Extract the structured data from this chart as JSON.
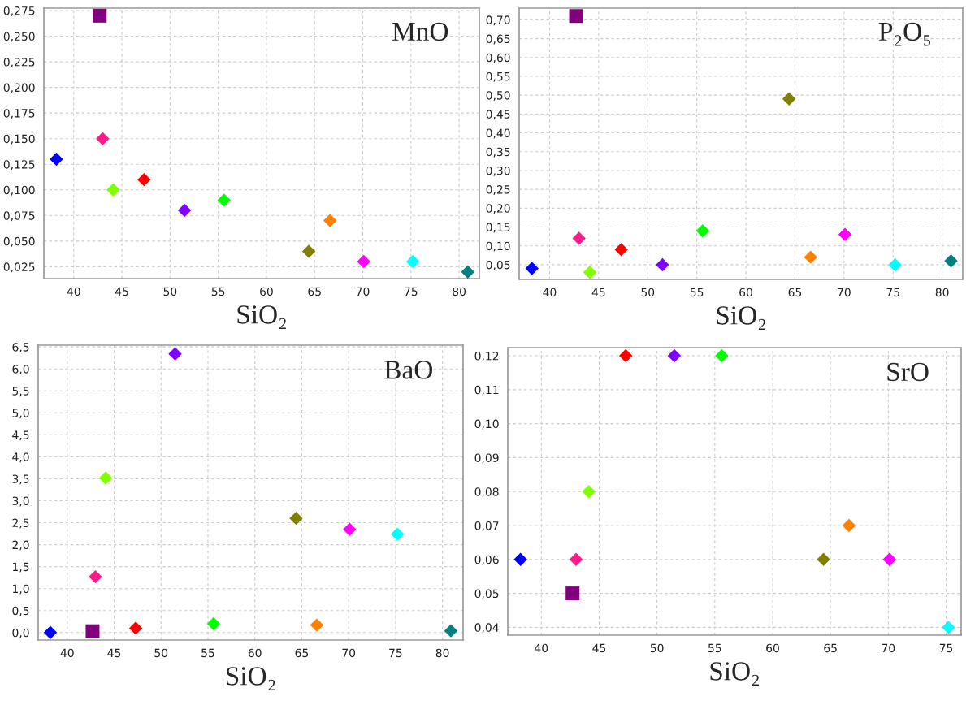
{
  "chart_data": [
    {
      "type": "scatter",
      "title": "MnO",
      "xlabel": "SiO₂",
      "xlim": [
        36.9,
        82.1
      ],
      "ylim": [
        0.0134,
        0.2774
      ],
      "xticks": [
        40,
        45,
        50,
        55,
        60,
        65,
        70,
        75,
        80
      ],
      "yticks": [
        {
          "value": 0.025,
          "label": "0,025"
        },
        {
          "value": 0.05,
          "label": "0,050"
        },
        {
          "value": 0.075,
          "label": "0,075"
        },
        {
          "value": 0.1,
          "label": "0,100"
        },
        {
          "value": 0.125,
          "label": "0,125"
        },
        {
          "value": 0.15,
          "label": "0,150"
        },
        {
          "value": 0.175,
          "label": "0,175"
        },
        {
          "value": 0.2,
          "label": "0,200"
        },
        {
          "value": 0.225,
          "label": "0,225"
        },
        {
          "value": 0.25,
          "label": "0,250"
        },
        {
          "value": 0.275,
          "label": "0,275"
        }
      ],
      "grid": true,
      "legend": false,
      "series": [
        {
          "marker": "diamond",
          "x": [
            38.2,
            43.0,
            44.1,
            47.3,
            51.5,
            55.6,
            64.4,
            66.6,
            70.1,
            75.2,
            80.9
          ],
          "values": [
            0.13,
            0.15,
            0.1,
            0.11,
            0.08,
            0.09,
            0.04,
            0.07,
            0.03,
            0.03,
            0.02
          ],
          "colors": [
            "#0000ff",
            "#ff1a8c",
            "#80ff00",
            "#ff0000",
            "#8000ff",
            "#00ff00",
            "#808000",
            "#ff8000",
            "#ff00ff",
            "#00ffff",
            "#008080"
          ]
        },
        {
          "marker": "square",
          "x": [
            42.7
          ],
          "values": [
            0.27
          ],
          "color": "#800080"
        }
      ]
    },
    {
      "type": "scatter",
      "title": "P₂O₅",
      "xlabel": "SiO₂",
      "xlim": [
        36.9,
        82.1
      ],
      "ylim": [
        0.011,
        0.731
      ],
      "xticks": [
        40,
        45,
        50,
        55,
        60,
        65,
        70,
        75,
        80
      ],
      "yticks": [
        {
          "value": 0.05,
          "label": "0,05"
        },
        {
          "value": 0.1,
          "label": "0,10"
        },
        {
          "value": 0.15,
          "label": "0,15"
        },
        {
          "value": 0.2,
          "label": "0,20"
        },
        {
          "value": 0.25,
          "label": "0,25"
        },
        {
          "value": 0.3,
          "label": "0,30"
        },
        {
          "value": 0.35,
          "label": "0,35"
        },
        {
          "value": 0.4,
          "label": "0,40"
        },
        {
          "value": 0.45,
          "label": "0,45"
        },
        {
          "value": 0.5,
          "label": "0,50"
        },
        {
          "value": 0.55,
          "label": "0,55"
        },
        {
          "value": 0.6,
          "label": "0,60"
        },
        {
          "value": 0.65,
          "label": "0,65"
        },
        {
          "value": 0.7,
          "label": "0,70"
        }
      ],
      "grid": true,
      "legend": false,
      "series": [
        {
          "marker": "diamond",
          "x": [
            38.2,
            43.0,
            44.1,
            47.3,
            51.5,
            55.6,
            64.4,
            66.6,
            70.1,
            75.2,
            80.9
          ],
          "values": [
            0.04,
            0.12,
            0.03,
            0.09,
            0.05,
            0.14,
            0.49,
            0.07,
            0.13,
            0.05,
            0.06
          ],
          "colors": [
            "#0000ff",
            "#ff1a8c",
            "#80ff00",
            "#ff0000",
            "#8000ff",
            "#00ff00",
            "#808000",
            "#ff8000",
            "#ff00ff",
            "#00ffff",
            "#008080"
          ]
        },
        {
          "marker": "square",
          "x": [
            42.7
          ],
          "values": [
            0.71
          ],
          "color": "#800080"
        }
      ]
    },
    {
      "type": "scatter",
      "title": "BaO",
      "xlabel": "SiO₂",
      "xlim": [
        36.9,
        82.2
      ],
      "ylim": [
        -0.17,
        6.54
      ],
      "xticks": [
        40,
        45,
        50,
        55,
        60,
        65,
        70,
        75,
        80
      ],
      "yticks": [
        {
          "value": 0,
          "label": "0,0"
        },
        {
          "value": 0.5,
          "label": "0,5"
        },
        {
          "value": 1,
          "label": "1,0"
        },
        {
          "value": 1.5,
          "label": "1,5"
        },
        {
          "value": 2,
          "label": "2,0"
        },
        {
          "value": 2.5,
          "label": "2,5"
        },
        {
          "value": 3,
          "label": "3,0"
        },
        {
          "value": 3.5,
          "label": "3,5"
        },
        {
          "value": 4,
          "label": "4,0"
        },
        {
          "value": 4.5,
          "label": "4,5"
        },
        {
          "value": 5,
          "label": "5,0"
        },
        {
          "value": 5.5,
          "label": "5,5"
        },
        {
          "value": 6,
          "label": "6,0"
        },
        {
          "value": 6.5,
          "label": "6,5"
        }
      ],
      "grid": true,
      "legend": false,
      "series": [
        {
          "marker": "diamond",
          "x": [
            38.2,
            43.0,
            44.1,
            47.3,
            51.5,
            55.6,
            64.4,
            66.6,
            70.1,
            75.2,
            80.9
          ],
          "values": [
            0.0,
            1.27,
            3.52,
            0.1,
            6.34,
            0.2,
            2.6,
            0.17,
            2.35,
            2.24,
            0.04
          ],
          "colors": [
            "#0000ff",
            "#ff1a8c",
            "#80ff00",
            "#ff0000",
            "#8000ff",
            "#00ff00",
            "#808000",
            "#ff8000",
            "#ff00ff",
            "#00ffff",
            "#008080"
          ]
        },
        {
          "marker": "square",
          "x": [
            42.7
          ],
          "values": [
            0.03
          ],
          "color": "#800080"
        }
      ]
    },
    {
      "type": "scatter",
      "title": "SrO",
      "xlabel": "SiO₂",
      "xlim": [
        37.1,
        76.3
      ],
      "ylim": [
        0.0377,
        0.1224
      ],
      "xticks": [
        40,
        45,
        50,
        55,
        60,
        65,
        70,
        75
      ],
      "yticks": [
        {
          "value": 0.04,
          "label": "0,04"
        },
        {
          "value": 0.05,
          "label": "0,05"
        },
        {
          "value": 0.06,
          "label": "0,06"
        },
        {
          "value": 0.07,
          "label": "0,07"
        },
        {
          "value": 0.08,
          "label": "0,08"
        },
        {
          "value": 0.09,
          "label": "0,09"
        },
        {
          "value": 0.1,
          "label": "0,10"
        },
        {
          "value": 0.11,
          "label": "0,11"
        },
        {
          "value": 0.12,
          "label": "0,12"
        }
      ],
      "grid": true,
      "legend": false,
      "series": [
        {
          "marker": "diamond",
          "x": [
            38.2,
            43.0,
            44.1,
            47.3,
            51.5,
            55.6,
            64.4,
            66.6,
            70.1,
            75.2
          ],
          "values": [
            0.06,
            0.06,
            0.08,
            0.12,
            0.12,
            0.12,
            0.06,
            0.07,
            0.06,
            0.04
          ],
          "colors": [
            "#0000ff",
            "#ff1a8c",
            "#80ff00",
            "#ff0000",
            "#8000ff",
            "#00ff00",
            "#808000",
            "#ff8000",
            "#ff00ff",
            "#00ffff"
          ]
        },
        {
          "marker": "square",
          "x": [
            42.7
          ],
          "values": [
            0.05
          ],
          "color": "#800080"
        }
      ]
    }
  ]
}
